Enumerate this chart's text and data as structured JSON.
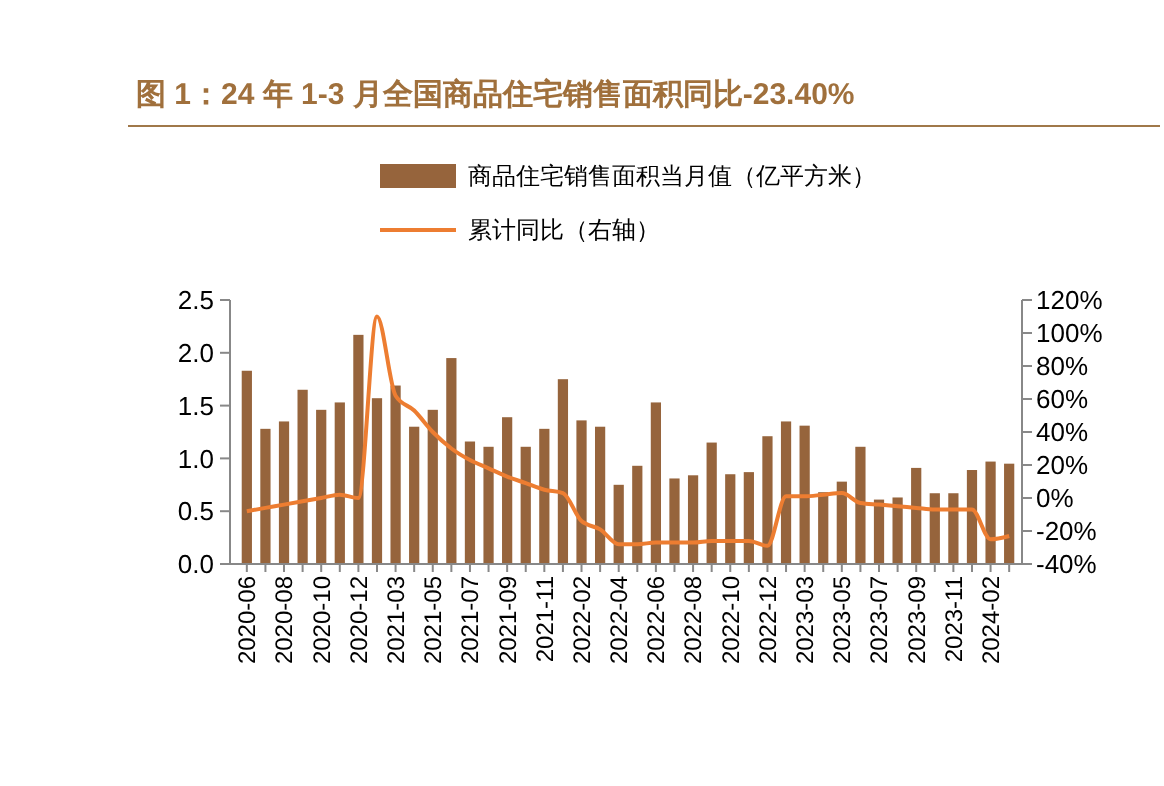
{
  "chart_data": {
    "type": "bar",
    "title": "图 1：24 年 1-3 月全国商品住宅销售面积同比-23.40%",
    "categories": [
      "2020-06",
      null,
      "2020-08",
      null,
      "2020-10",
      null,
      "2020-12",
      null,
      "2021-03",
      null,
      "2021-05",
      null,
      "2021-07",
      null,
      "2021-09",
      null,
      "2021-11",
      null,
      "2022-02",
      null,
      "2022-04",
      null,
      "2022-06",
      null,
      "2022-08",
      null,
      "2022-10",
      null,
      "2022-12",
      null,
      "2023-03",
      null,
      "2023-05",
      null,
      "2023-07",
      null,
      "2023-09",
      null,
      "2023-11",
      null,
      "2024-02",
      null
    ],
    "series": [
      {
        "name": "商品住宅销售面积当月值（亿平方米）",
        "color": "#96643c",
        "values": [
          1.83,
          1.28,
          1.35,
          1.65,
          1.46,
          1.53,
          2.17,
          1.57,
          1.69,
          1.3,
          1.46,
          1.95,
          1.16,
          1.11,
          1.39,
          1.11,
          1.28,
          1.75,
          1.36,
          1.3,
          0.75,
          0.93,
          1.53,
          0.81,
          0.84,
          1.15,
          0.85,
          0.87,
          1.21,
          1.35,
          1.31,
          0.68,
          0.78,
          1.11,
          0.61,
          0.63,
          0.91,
          0.67,
          0.67,
          0.89,
          0.97,
          0.95
        ]
      },
      {
        "name": "累计同比（右轴）",
        "type": "line",
        "axis": "y2",
        "color": "#ed7d31",
        "values": [
          -8,
          -6,
          -4,
          -2,
          0,
          2,
          0,
          110,
          62,
          53,
          40,
          30,
          23,
          18,
          13,
          9,
          5,
          3,
          -14,
          -19,
          -28,
          -28,
          -27,
          -27,
          -27,
          -26,
          -26,
          -26,
          -29,
          1,
          1,
          2,
          3,
          -3,
          -4,
          -5,
          -6,
          -7,
          -7,
          -7,
          -25,
          -23
        ]
      }
    ],
    "ylim": [
      0,
      2.5
    ],
    "yticks": [
      {
        "value": 0,
        "label": "0.0"
      },
      {
        "value": 0.5,
        "label": "0.5"
      },
      {
        "value": 1,
        "label": "1.0"
      },
      {
        "value": 1.5,
        "label": "1.5"
      },
      {
        "value": 2,
        "label": "2.0"
      },
      {
        "value": 2.5,
        "label": "2.5"
      }
    ],
    "y2lim": [
      -40,
      120
    ],
    "y2ticks": [
      {
        "value": -40,
        "label": "-40%"
      },
      {
        "value": -20,
        "label": "-20%"
      },
      {
        "value": 0,
        "label": "0%"
      },
      {
        "value": 20,
        "label": "20%"
      },
      {
        "value": 40,
        "label": "40%"
      },
      {
        "value": 60,
        "label": "60%"
      },
      {
        "value": 80,
        "label": "80%"
      },
      {
        "value": 100,
        "label": "100%"
      },
      {
        "value": 120,
        "label": "120%"
      }
    ],
    "legend": "top",
    "grid": false
  }
}
